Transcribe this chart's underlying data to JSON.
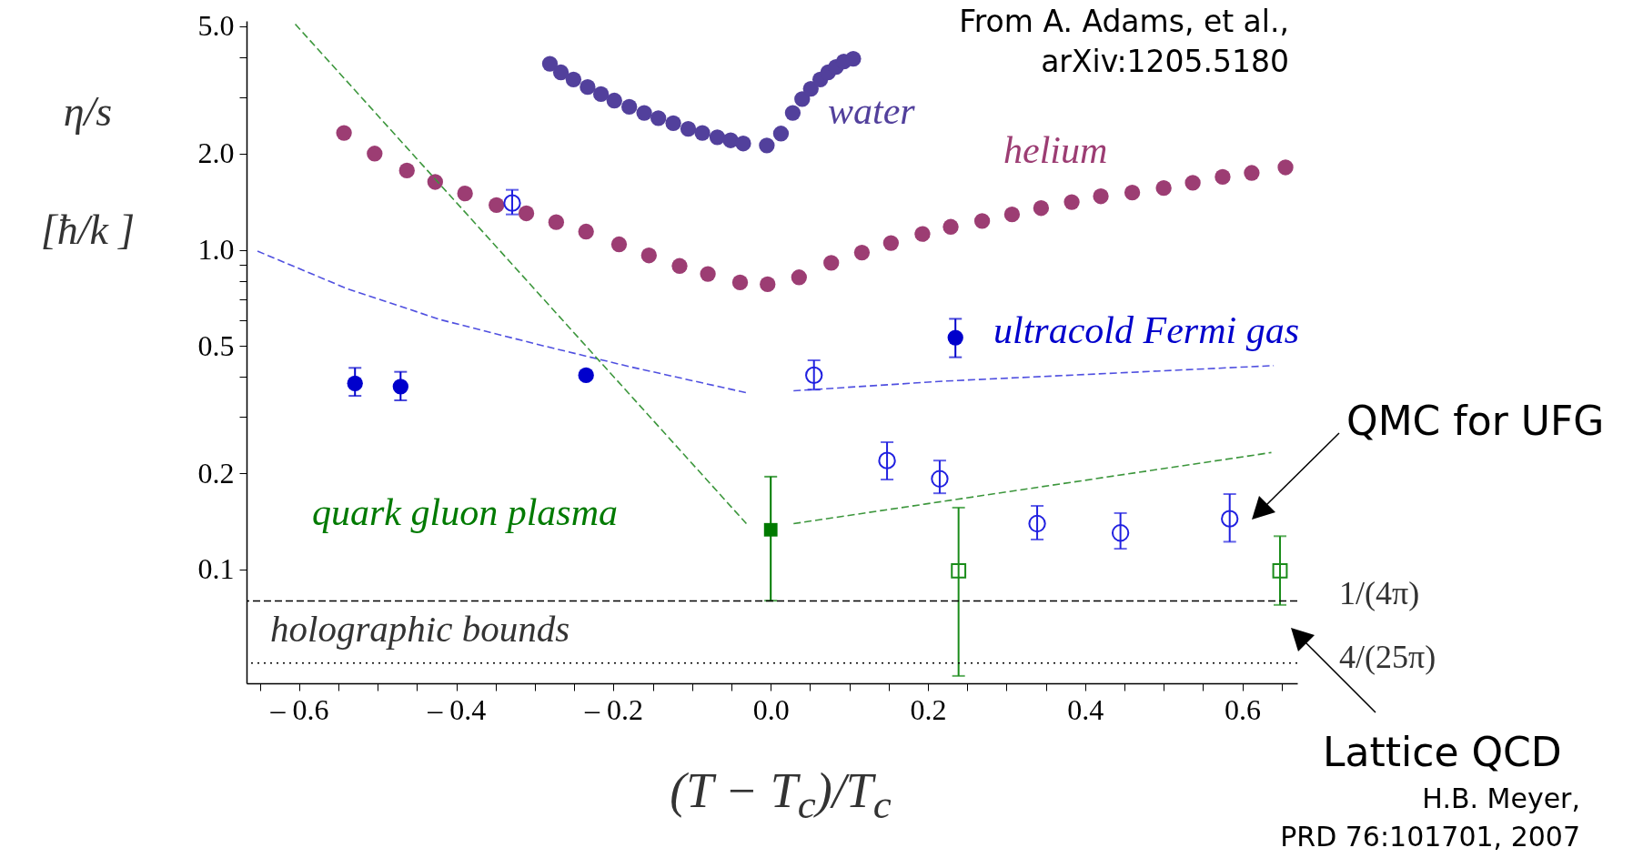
{
  "chart_data": {
    "type": "scatter",
    "xlabel": "(T − T$_{c}$)/T$_{c}$",
    "ylabel": "η/s [ħ/k ]",
    "log": "y",
    "xlim": [
      -0.667,
      0.67
    ],
    "ylim": [
      0.044,
      5.2
    ],
    "xticks": [
      {
        "value": -0.65,
        "label": null
      },
      {
        "value": -0.6,
        "label": "– 0.6"
      },
      {
        "value": -0.55,
        "label": null
      },
      {
        "value": -0.5,
        "label": null
      },
      {
        "value": -0.45,
        "label": null
      },
      {
        "value": -0.4,
        "label": "– 0.4"
      },
      {
        "value": -0.35,
        "label": null
      },
      {
        "value": -0.3,
        "label": null
      },
      {
        "value": -0.25,
        "label": null
      },
      {
        "value": -0.2,
        "label": "– 0.2"
      },
      {
        "value": -0.15,
        "label": null
      },
      {
        "value": -0.1,
        "label": null
      },
      {
        "value": -0.05,
        "label": null
      },
      {
        "value": 0,
        "label": "0.0"
      },
      {
        "value": 0.05,
        "label": null
      },
      {
        "value": 0.1,
        "label": null
      },
      {
        "value": 0.15,
        "label": null
      },
      0.2,
      {
        "value": 0.25,
        "label": null
      },
      {
        "value": 0.3,
        "label": null
      },
      {
        "value": 0.35,
        "label": null
      },
      0.4,
      {
        "value": 0.45,
        "label": null
      },
      {
        "value": 0.5,
        "label": null
      },
      {
        "value": 0.55,
        "label": null
      },
      0.6,
      {
        "value": 0.65,
        "label": null
      }
    ],
    "yticks": [
      0.1,
      0.2,
      {
        "value": 0.3,
        "label": null
      },
      {
        "value": 0.4,
        "label": null
      },
      0.5,
      {
        "value": 0.6,
        "label": null
      },
      {
        "value": 0.7,
        "label": null
      },
      {
        "value": 0.8,
        "label": null
      },
      {
        "value": 0.9,
        "label": null
      },
      {
        "value": 1,
        "label": "1.0"
      },
      {
        "value": 2,
        "label": "2.0"
      },
      {
        "value": 3,
        "label": null
      },
      {
        "value": 4,
        "label": null
      },
      {
        "value": 5,
        "label": "5.0"
      }
    ],
    "series": [
      {
        "name": "water",
        "marker": "circle",
        "color": "#52409c",
        "x": [
          -0.281,
          -0.267,
          -0.251,
          -0.233,
          -0.216,
          -0.199,
          -0.18,
          -0.161,
          -0.143,
          -0.124,
          -0.105,
          -0.087,
          -0.068,
          -0.051,
          -0.035,
          -0.005,
          0.013,
          0.028,
          0.04,
          0.051,
          0.063,
          0.073,
          0.083,
          0.093,
          0.105
        ],
        "values": [
          3.82,
          3.59,
          3.41,
          3.23,
          3.07,
          2.93,
          2.8,
          2.68,
          2.58,
          2.49,
          2.39,
          2.32,
          2.25,
          2.2,
          2.15,
          2.12,
          2.31,
          2.68,
          2.96,
          3.19,
          3.41,
          3.59,
          3.73,
          3.88,
          3.96
        ]
      },
      {
        "name": "helium",
        "marker": "circle",
        "color": "#9c3d73",
        "x": [
          -0.543,
          -0.504,
          -0.463,
          -0.427,
          -0.389,
          -0.349,
          -0.311,
          -0.273,
          -0.235,
          -0.193,
          -0.155,
          -0.116,
          -0.08,
          -0.039,
          -0.004,
          0.036,
          0.077,
          0.116,
          0.153,
          0.193,
          0.229,
          0.269,
          0.307,
          0.344,
          0.383,
          0.42,
          0.46,
          0.5,
          0.537,
          0.575,
          0.612,
          0.655
        ],
        "values": [
          2.32,
          2.0,
          1.77,
          1.63,
          1.5,
          1.38,
          1.3,
          1.22,
          1.14,
          1.04,
          0.96,
          0.89,
          0.84,
          0.79,
          0.78,
          0.82,
          0.91,
          0.98,
          1.05,
          1.12,
          1.18,
          1.23,
          1.29,
          1.35,
          1.41,
          1.47,
          1.51,
          1.56,
          1.62,
          1.69,
          1.74,
          1.81
        ]
      },
      {
        "name": "ultracold Fermi gas",
        "marker": "circle",
        "color": "#0000cc",
        "x": [
          -0.529,
          -0.471,
          -0.235,
          0.235
        ],
        "values": [
          0.382,
          0.373,
          0.405,
          0.531
        ],
        "errors": [
          [
            0.349,
            0.427
          ],
          [
            0.338,
            0.415
          ],
          null,
          [
            0.461,
            0.608
          ]
        ]
      },
      {
        "marker": "circle",
        "color": "#2020e0",
        "x": [
          -0.329,
          0.055,
          0.148,
          0.215,
          0.339,
          0.445,
          0.584
        ],
        "values": [
          1.4,
          0.405,
          0.219,
          0.192,
          0.139,
          0.13,
          0.144
        ],
        "errors": [
          [
            1.29,
            1.54
          ],
          [
            0.365,
            0.451
          ],
          [
            0.191,
            0.25
          ],
          [
            0.173,
            0.219
          ],
          [
            0.124,
            0.158
          ],
          [
            0.116,
            0.15
          ],
          [
            0.122,
            0.172
          ]
        ]
      },
      {
        "name": "quark gluon plasma",
        "marker": "square",
        "color": "#007a00",
        "x": [
          0.0
        ],
        "values": [
          0.133
        ],
        "errors": [
          [
            0.0798,
            0.195
          ]
        ]
      },
      {
        "marker": "square",
        "color": "#1a8c1a",
        "x": [
          0.239,
          0.648
        ],
        "values": [
          0.099,
          0.099
        ],
        "errors": [
          [
            0.0464,
            0.156
          ],
          [
            0.0774,
            0.127
          ]
        ]
      },
      {
        "type": "line",
        "line_style": "dashed",
        "color": "#5050e0",
        "x": [
          -0.653,
          -0.54,
          -0.42,
          -0.3,
          -0.18,
          -0.031
        ],
        "values": [
          0.99,
          0.757,
          0.604,
          0.508,
          0.431,
          0.357
        ]
      },
      {
        "type": "line",
        "line_style": "dashed",
        "color": "#5050e0",
        "x": [
          0.029,
          0.22,
          0.64
        ],
        "values": [
          0.362,
          0.388,
          0.434
        ]
      },
      {
        "type": "line",
        "line_style": "dashed",
        "color": "#3c963c",
        "x": [
          -0.605,
          -0.031
        ],
        "values": [
          5.08,
          0.139
        ]
      },
      {
        "type": "line",
        "line_style": "dashed",
        "color": "#3c963c",
        "x": [
          0.029,
          0.637
        ],
        "values": [
          0.139,
          0.232
        ]
      }
    ],
    "ref_lines": [
      {
        "axis": "y",
        "value": 0.0796,
        "label": "1/(4π)",
        "line_style": "dashed",
        "color": "#000000"
      },
      {
        "axis": "y",
        "value": 0.0509,
        "label": "4/(25π)",
        "line_style": "dotted",
        "color": "#000000"
      }
    ],
    "annotations": [
      "From A. Adams, et al.,",
      "arXiv:1205.5180",
      "holographic bounds",
      "QMC for UFG",
      "Lattice QCD",
      "H.B. Meyer,",
      "PRD 76:101701, 2007"
    ]
  }
}
